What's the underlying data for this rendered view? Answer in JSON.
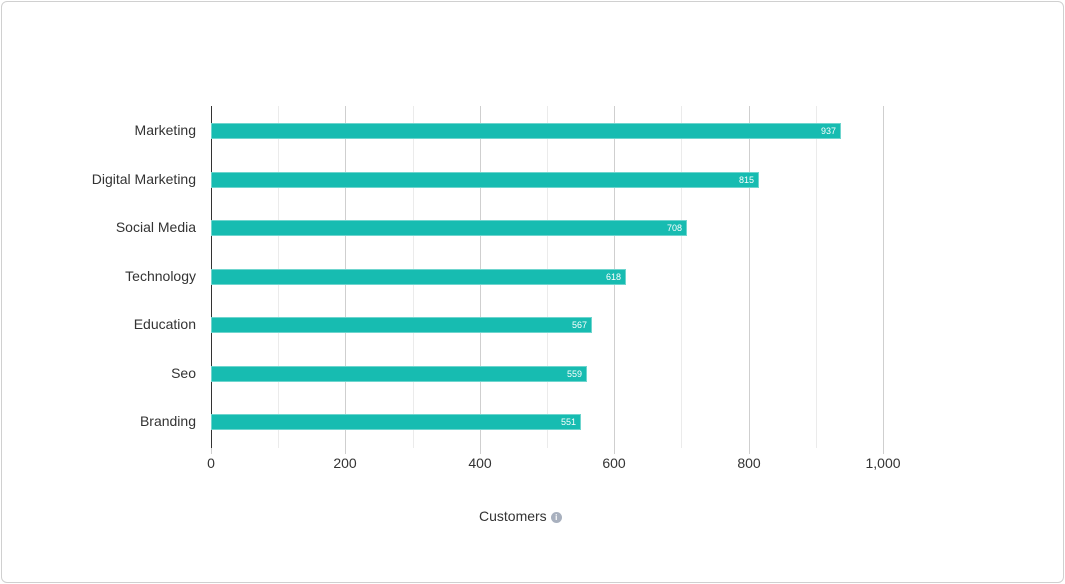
{
  "chart_data": {
    "type": "bar",
    "orientation": "horizontal",
    "title": "",
    "xlabel": "Customers",
    "ylabel": "",
    "categories": [
      "Marketing",
      "Digital Marketing",
      "Social Media",
      "Technology",
      "Education",
      "Seo",
      "Branding"
    ],
    "values": [
      937,
      815,
      708,
      618,
      567,
      559,
      551
    ],
    "xlim": [
      0,
      1000
    ],
    "xticks": [
      "0",
      "200",
      "400",
      "600",
      "800",
      "1,000"
    ],
    "grid": true,
    "bar_color": "#17bcb1",
    "data_labels": true
  },
  "axis": {
    "title": "Customers",
    "info_icon": "i"
  }
}
